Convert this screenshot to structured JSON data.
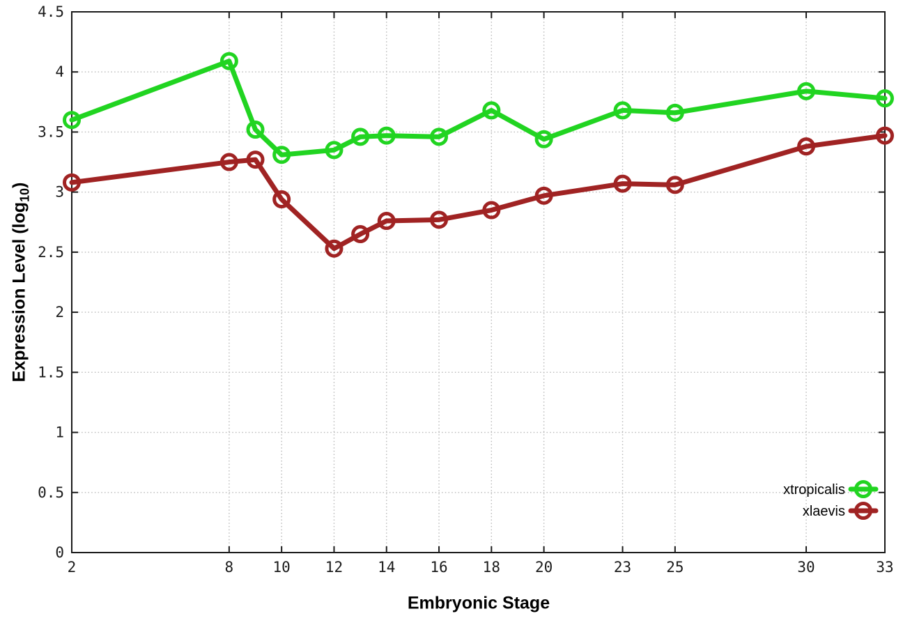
{
  "figure": {
    "background": "#ffffff",
    "axis_color": "#1a1a1a",
    "grid_color": "#b8b8b8"
  },
  "chart_data": {
    "type": "line",
    "title": "",
    "xlabel": "Embryonic Stage",
    "ylabel_main": "Expression Level (log",
    "ylabel_sub": "10",
    "ylabel_close": ")",
    "xlim": [
      2,
      33
    ],
    "ylim": [
      0,
      4.5
    ],
    "grid": true,
    "legend_position": "bottom-right",
    "x": [
      2,
      8,
      9,
      10,
      12,
      13,
      14,
      16,
      18,
      20,
      23,
      25,
      30,
      33
    ],
    "xticks": [
      2,
      8,
      10,
      12,
      14,
      16,
      18,
      20,
      23,
      25,
      30,
      33
    ],
    "xtick_labels": [
      "2",
      "8",
      "10",
      "12",
      "14",
      "16",
      "18",
      "20",
      "23",
      "25",
      "30",
      "33"
    ],
    "yticks": [
      0,
      0.5,
      1,
      1.5,
      2,
      2.5,
      3,
      3.5,
      4,
      4.5
    ],
    "ytick_labels": [
      "0",
      "0.5",
      "1",
      "1.5",
      "2",
      "2.5",
      "3",
      "3.5",
      "4",
      "4.5"
    ],
    "series": [
      {
        "name": "xtropicalis",
        "color": "#21d421",
        "values": [
          3.6,
          4.09,
          3.52,
          3.31,
          3.35,
          3.46,
          3.47,
          3.46,
          3.68,
          3.44,
          3.68,
          3.66,
          3.84,
          3.78
        ]
      },
      {
        "name": "xlaevis",
        "color": "#a02323",
        "values": [
          3.08,
          3.25,
          3.27,
          2.94,
          2.53,
          2.65,
          2.76,
          2.77,
          2.85,
          2.97,
          3.07,
          3.06,
          3.38,
          3.47
        ]
      }
    ]
  }
}
